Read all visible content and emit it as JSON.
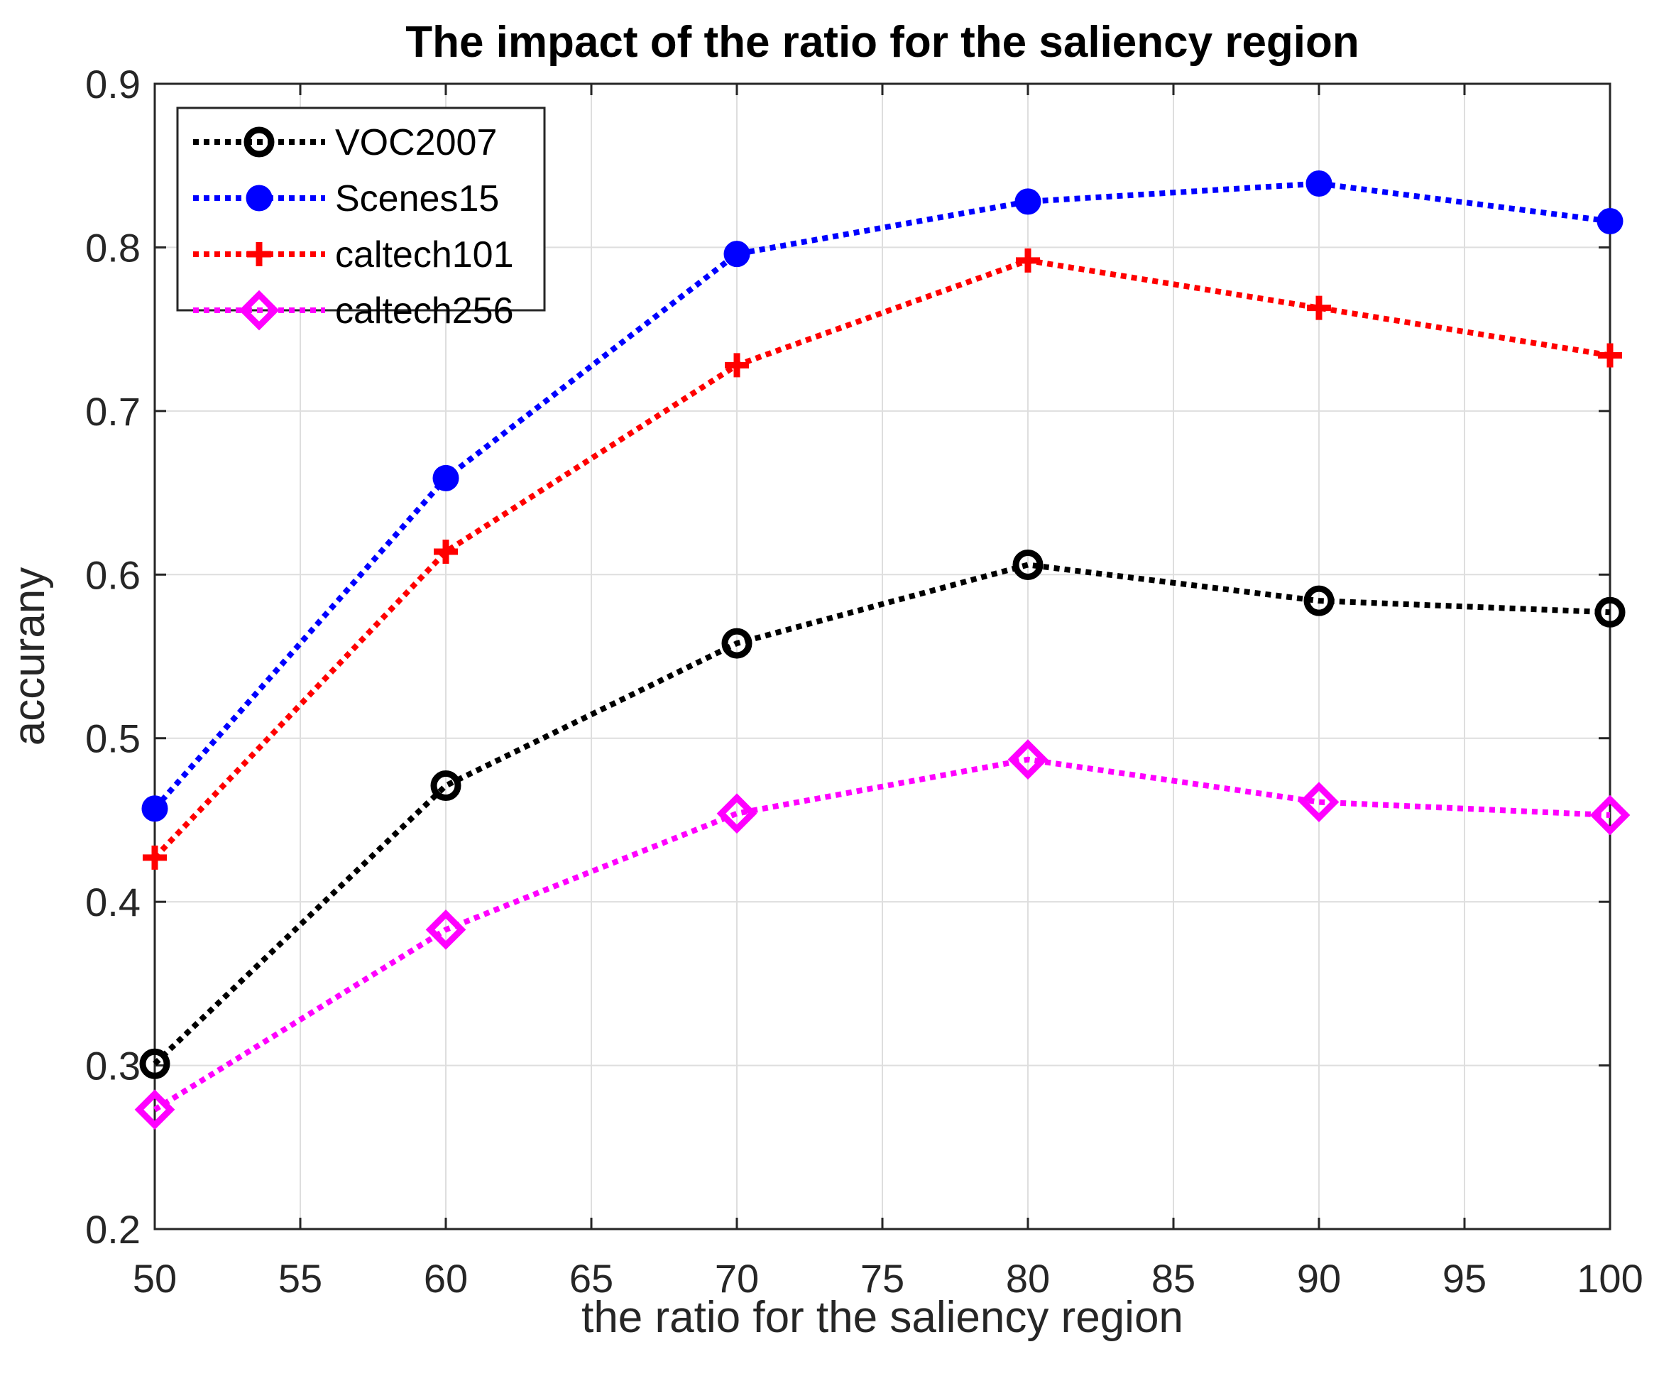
{
  "chart_data": {
    "type": "line",
    "title": "The impact of the ratio for the saliency region",
    "xlabel": "the ratio for the saliency region",
    "ylabel": "accurany",
    "xlim": [
      50,
      100
    ],
    "ylim": [
      0.2,
      0.9
    ],
    "xticks": [
      "50",
      "55",
      "60",
      "65",
      "70",
      "75",
      "80",
      "85",
      "90",
      "95",
      "100"
    ],
    "yticks": [
      "0.2",
      "0.3",
      "0.4",
      "0.5",
      "0.6",
      "0.7",
      "0.8",
      "0.9"
    ],
    "grid": true,
    "legend_position": "top-left",
    "x": [
      50,
      60,
      70,
      80,
      90,
      100
    ],
    "series": [
      {
        "name": "VOC2007",
        "color": "#000000",
        "marker": "circle-open",
        "values": [
          0.301,
          0.471,
          0.558,
          0.606,
          0.584,
          0.577
        ]
      },
      {
        "name": "Scenes15",
        "color": "#0000ff",
        "marker": "circle-filled",
        "values": [
          0.457,
          0.659,
          0.796,
          0.828,
          0.839,
          0.816
        ]
      },
      {
        "name": "caltech101",
        "color": "#ff0000",
        "marker": "plus",
        "values": [
          0.427,
          0.614,
          0.728,
          0.792,
          0.763,
          0.734
        ]
      },
      {
        "name": "caltech256",
        "color": "#ff00ff",
        "marker": "diamond",
        "values": [
          0.273,
          0.383,
          0.454,
          0.487,
          0.461,
          0.453
        ]
      }
    ]
  }
}
